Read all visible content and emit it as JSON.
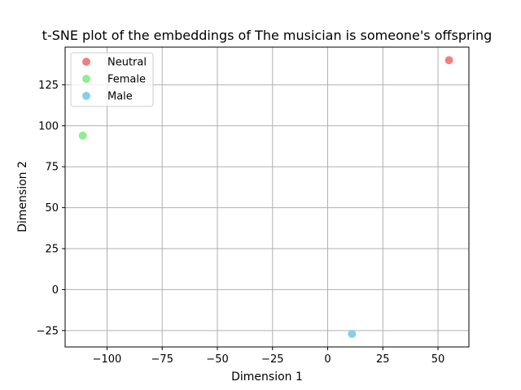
{
  "chart_data": {
    "type": "scatter",
    "title": "t-SNE plot of the embeddings of The musician is someone's offspring",
    "xlabel": "Dimension 1",
    "ylabel": "Dimension 2",
    "xlim": [
      -119,
      64
    ],
    "ylim": [
      -35,
      148
    ],
    "xticks": [
      -100,
      -75,
      -50,
      -25,
      0,
      25,
      50
    ],
    "xtick_labels": [
      "−100",
      "−75",
      "−50",
      "−25",
      "0",
      "25",
      "50"
    ],
    "yticks": [
      -25,
      0,
      25,
      50,
      75,
      100,
      125
    ],
    "ytick_labels": [
      "−25",
      "0",
      "25",
      "50",
      "75",
      "100",
      "125"
    ],
    "grid": true,
    "legend_position": "top-left",
    "series": [
      {
        "name": "Neutral",
        "color": "#f08080",
        "x": [
          55
        ],
        "y": [
          140
        ]
      },
      {
        "name": "Female",
        "color": "#90ee90",
        "x": [
          -111
        ],
        "y": [
          94
        ]
      },
      {
        "name": "Male",
        "color": "#87ceeb",
        "x": [
          11
        ],
        "y": [
          -27
        ]
      }
    ]
  }
}
